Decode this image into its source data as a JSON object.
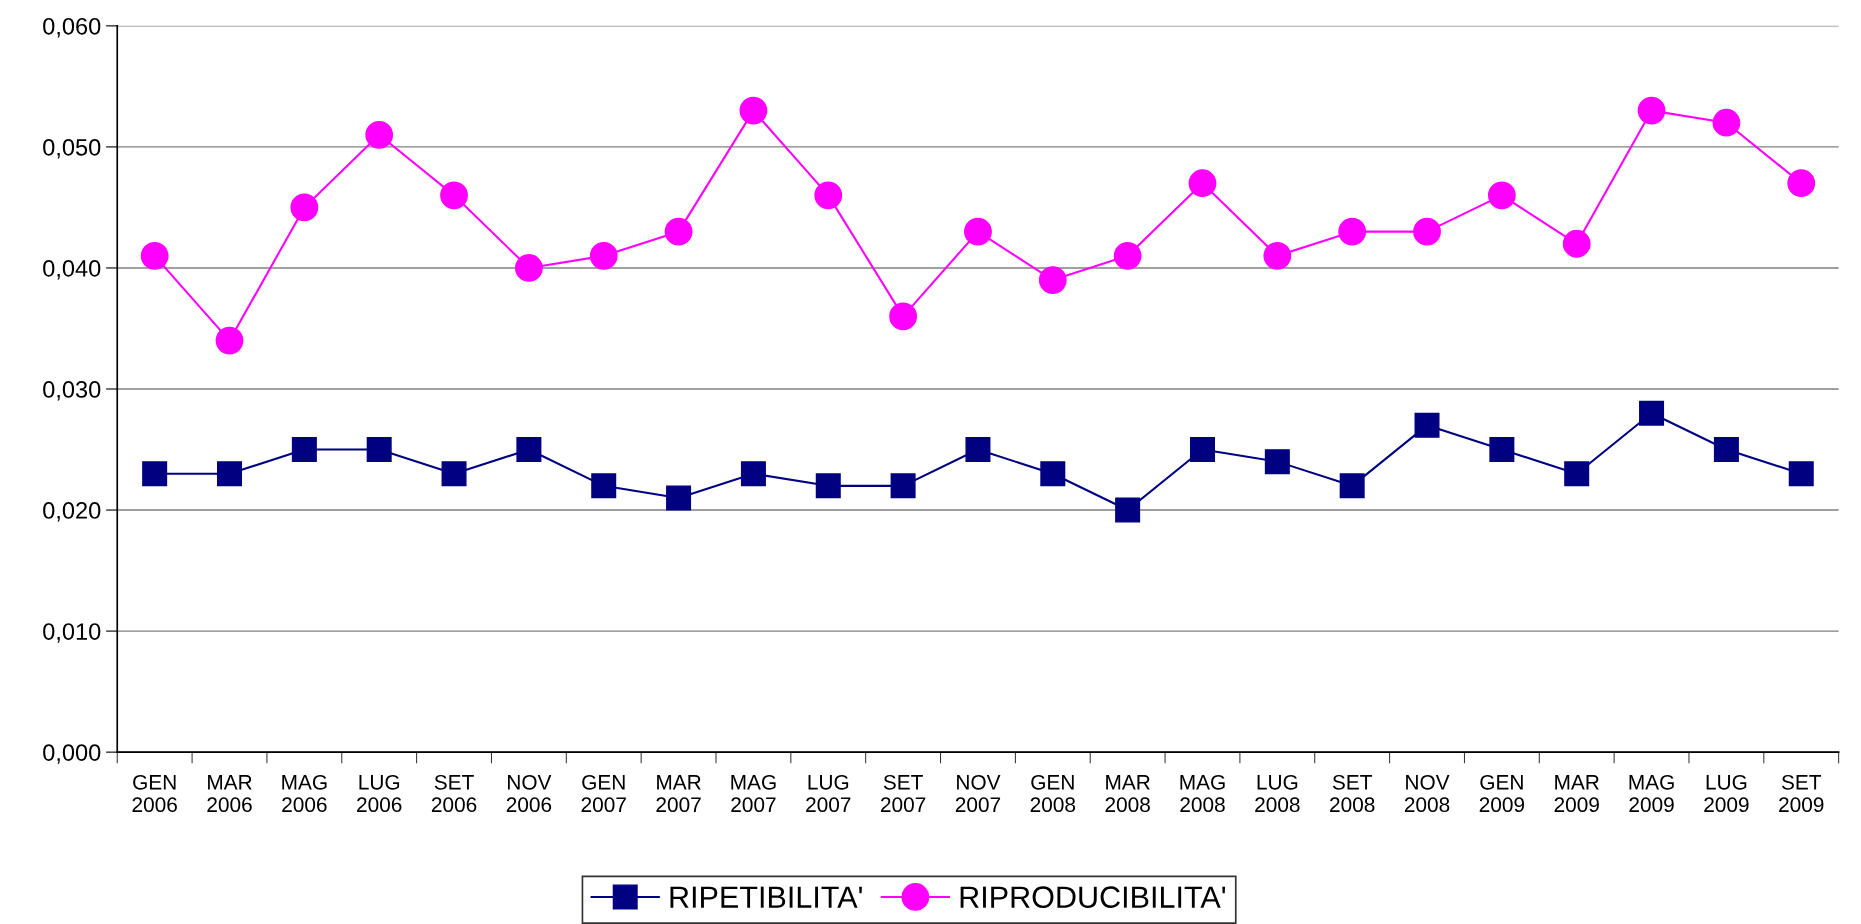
{
  "chart_data": {
    "type": "line",
    "categories": [
      "GEN\n2006",
      "MAR\n2006",
      "MAG\n2006",
      "LUG\n2006",
      "SET\n2006",
      "NOV\n2006",
      "GEN\n2007",
      "MAR\n2007",
      "MAG\n2007",
      "LUG\n2007",
      "SET\n2007",
      "NOV\n2007",
      "GEN\n2008",
      "MAR\n2008",
      "MAG\n2008",
      "LUG\n2008",
      "SET\n2008",
      "NOV\n2008",
      "GEN\n2009",
      "MAR\n2009",
      "MAG\n2009",
      "LUG\n2009",
      "SET\n2009"
    ],
    "series": [
      {
        "name": "RIPETIBILITA'",
        "color": "#000080",
        "marker": "square",
        "values": [
          0.023,
          0.023,
          0.025,
          0.025,
          0.023,
          0.025,
          0.022,
          0.021,
          0.023,
          0.022,
          0.022,
          0.025,
          0.023,
          0.02,
          0.025,
          0.024,
          0.022,
          0.027,
          0.025,
          0.023,
          0.028,
          0.025,
          0.023
        ]
      },
      {
        "name": "RIPRODUCIBILITA'",
        "color": "#ff00ff",
        "marker": "circle",
        "values": [
          0.041,
          0.034,
          0.045,
          0.051,
          0.046,
          0.04,
          0.041,
          0.043,
          0.053,
          0.046,
          0.036,
          0.043,
          0.039,
          0.041,
          0.047,
          0.041,
          0.043,
          0.043,
          0.046,
          0.042,
          0.053,
          0.052,
          0.047
        ]
      }
    ],
    "ylim": [
      0,
      0.06
    ],
    "yticks": [
      {
        "value": 0,
        "label": "0,000"
      },
      {
        "value": 0.01,
        "label": "0,010"
      },
      {
        "value": 0.02,
        "label": "0,020"
      },
      {
        "value": 0.03,
        "label": "0,030"
      },
      {
        "value": 0.04,
        "label": "0,040"
      },
      {
        "value": 0.05,
        "label": "0,050"
      },
      {
        "value": 0.06,
        "label": "0,060"
      }
    ],
    "grid": "y",
    "legend": "bottom",
    "line_style": "solid"
  }
}
